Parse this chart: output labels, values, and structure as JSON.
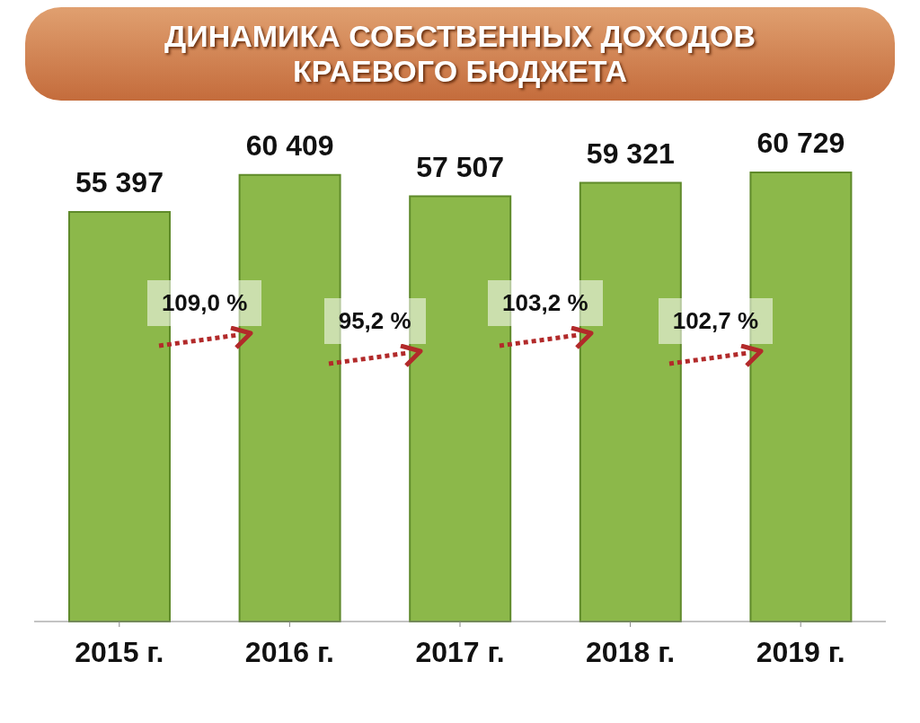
{
  "chart_data": {
    "type": "bar",
    "title": "ДИНАМИКА СОБСТВЕННЫХ ДОХОДОВ\nКРАЕВОГО БЮДЖЕТА",
    "categories": [
      "2015 г.",
      "2016 г.",
      "2017 г.",
      "2018 г.",
      "2019 г."
    ],
    "values": [
      55397,
      60409,
      57507,
      59321,
      60729
    ],
    "value_labels": [
      "55 397",
      "60 409",
      "57 507",
      "59 321",
      "60 729"
    ],
    "color": "#8cb84a",
    "annotations": [
      "109,0 %",
      "95,2 %",
      "103,2 %",
      "102,7 %"
    ]
  }
}
